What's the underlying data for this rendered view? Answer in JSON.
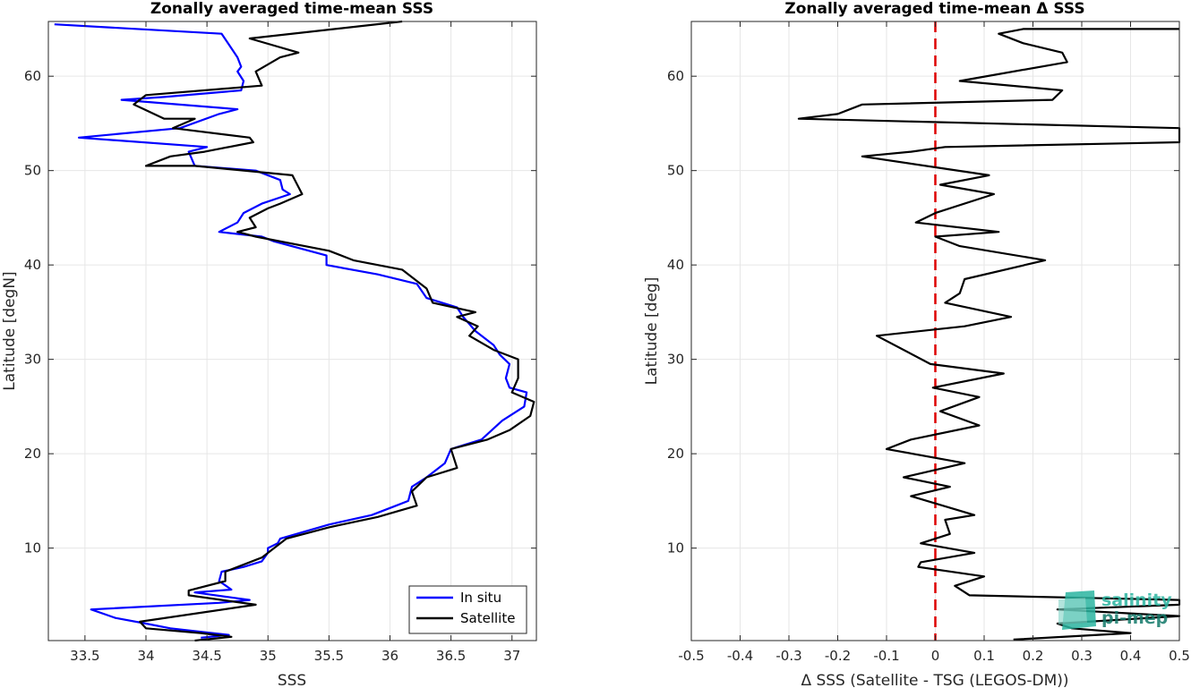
{
  "chart_data": [
    {
      "type": "line",
      "title": "Zonally averaged time-mean SSS",
      "xlabel": "SSS",
      "ylabel": "Latitude [degN]",
      "xlim": [
        33.2,
        37.2
      ],
      "ylim": [
        0.2,
        65.8
      ],
      "xticks": [
        33.5,
        34,
        34.5,
        35,
        35.5,
        36,
        36.5,
        37
      ],
      "xticklabels": [
        "33.5",
        "34",
        "34.5",
        "35",
        "35.5",
        "36",
        "36.5",
        "37"
      ],
      "yticks": [
        10,
        20,
        30,
        40,
        50,
        60
      ],
      "yticklabels": [
        "10",
        "20",
        "30",
        "40",
        "50",
        "60"
      ],
      "grid": true,
      "legend": "bottom-right",
      "series": [
        {
          "name": "In situ",
          "color": "#0000ff",
          "points": [
            [
              34.45,
              0.5
            ],
            [
              34.68,
              0.8
            ],
            [
              34.2,
              1.5
            ],
            [
              34.0,
              2.0
            ],
            [
              33.75,
              2.6
            ],
            [
              33.55,
              3.5
            ],
            [
              34.6,
              4.2
            ],
            [
              34.85,
              4.5
            ],
            [
              34.4,
              5.3
            ],
            [
              34.7,
              5.6
            ],
            [
              34.6,
              6.5
            ],
            [
              34.62,
              7.5
            ],
            [
              34.8,
              8.0
            ],
            [
              34.95,
              8.6
            ],
            [
              35.0,
              9.5
            ],
            [
              35.0,
              10.0
            ],
            [
              35.08,
              10.5
            ],
            [
              35.1,
              11.0
            ],
            [
              35.5,
              12.5
            ],
            [
              35.85,
              13.5
            ],
            [
              36.05,
              14.5
            ],
            [
              36.15,
              15.0
            ],
            [
              36.18,
              16.5
            ],
            [
              36.3,
              17.5
            ],
            [
              36.45,
              19.0
            ],
            [
              36.5,
              20.5
            ],
            [
              36.75,
              21.5
            ],
            [
              36.92,
              23.5
            ],
            [
              37.1,
              25.0
            ],
            [
              37.12,
              26.5
            ],
            [
              36.98,
              27.0
            ],
            [
              36.95,
              28.0
            ],
            [
              36.98,
              29.5
            ],
            [
              36.9,
              30.5
            ],
            [
              36.85,
              31.5
            ],
            [
              36.7,
              33.0
            ],
            [
              36.6,
              34.5
            ],
            [
              36.55,
              35.5
            ],
            [
              36.3,
              36.5
            ],
            [
              36.22,
              38.0
            ],
            [
              35.9,
              39.0
            ],
            [
              35.48,
              40.0
            ],
            [
              35.48,
              41.0
            ],
            [
              35.05,
              42.5
            ],
            [
              34.95,
              43.0
            ],
            [
              34.6,
              43.5
            ],
            [
              34.75,
              44.5
            ],
            [
              34.8,
              45.5
            ],
            [
              34.95,
              46.5
            ],
            [
              35.18,
              47.5
            ],
            [
              35.12,
              48.0
            ],
            [
              35.1,
              49.0
            ],
            [
              34.9,
              50.0
            ],
            [
              34.4,
              50.5
            ],
            [
              34.35,
              52.0
            ],
            [
              34.5,
              52.5
            ],
            [
              33.45,
              53.5
            ],
            [
              34.28,
              54.5
            ],
            [
              34.6,
              56.0
            ],
            [
              34.75,
              56.5
            ],
            [
              33.8,
              57.5
            ],
            [
              34.15,
              57.8
            ],
            [
              34.78,
              58.5
            ],
            [
              34.8,
              59.5
            ],
            [
              34.75,
              60.5
            ],
            [
              34.78,
              61.0
            ],
            [
              34.75,
              62.0
            ],
            [
              34.62,
              64.5
            ],
            [
              33.25,
              65.5
            ]
          ]
        },
        {
          "name": "Satellite",
          "color": "#000000",
          "points": [
            [
              34.4,
              0.0
            ],
            [
              34.7,
              0.6
            ],
            [
              34.45,
              1.0
            ],
            [
              34.0,
              1.5
            ],
            [
              33.95,
              2.2
            ],
            [
              34.9,
              4.0
            ],
            [
              34.35,
              5.0
            ],
            [
              34.35,
              5.5
            ],
            [
              34.65,
              6.5
            ],
            [
              34.65,
              7.5
            ],
            [
              34.95,
              9.0
            ],
            [
              35.05,
              10.0
            ],
            [
              35.15,
              11.0
            ],
            [
              35.5,
              12.2
            ],
            [
              35.9,
              13.3
            ],
            [
              36.22,
              14.5
            ],
            [
              36.18,
              16.0
            ],
            [
              36.3,
              17.5
            ],
            [
              36.55,
              18.5
            ],
            [
              36.5,
              20.5
            ],
            [
              36.8,
              21.5
            ],
            [
              36.98,
              22.5
            ],
            [
              37.15,
              24.0
            ],
            [
              37.18,
              25.5
            ],
            [
              37.0,
              26.5
            ],
            [
              37.05,
              28.0
            ],
            [
              37.05,
              30.0
            ],
            [
              36.85,
              31.0
            ],
            [
              36.65,
              32.5
            ],
            [
              36.72,
              33.5
            ],
            [
              36.55,
              34.5
            ],
            [
              36.7,
              35.0
            ],
            [
              36.35,
              36.0
            ],
            [
              36.3,
              37.5
            ],
            [
              36.25,
              38.0
            ],
            [
              36.1,
              39.5
            ],
            [
              35.7,
              40.5
            ],
            [
              35.5,
              41.5
            ],
            [
              34.9,
              43.0
            ],
            [
              34.75,
              43.5
            ],
            [
              34.9,
              44.0
            ],
            [
              34.85,
              45.0
            ],
            [
              35.0,
              46.0
            ],
            [
              35.1,
              46.5
            ],
            [
              35.28,
              47.5
            ],
            [
              35.2,
              49.5
            ],
            [
              34.4,
              50.5
            ],
            [
              34.0,
              50.5
            ],
            [
              34.2,
              51.5
            ],
            [
              34.48,
              52.0
            ],
            [
              34.88,
              53.0
            ],
            [
              34.85,
              53.5
            ],
            [
              34.22,
              54.5
            ],
            [
              34.4,
              55.5
            ],
            [
              34.15,
              55.5
            ],
            [
              33.9,
              57.0
            ],
            [
              34.0,
              58.0
            ],
            [
              34.95,
              59.0
            ],
            [
              34.9,
              60.5
            ],
            [
              35.1,
              62.0
            ],
            [
              35.25,
              62.5
            ],
            [
              34.85,
              64.0
            ],
            [
              36.1,
              65.8
            ]
          ]
        }
      ]
    },
    {
      "type": "line",
      "title": "Zonally averaged time-mean Δ SSS",
      "xlabel": "Δ SSS (Satellite - TSG (LEGOS-DM))",
      "ylabel": "Latitude [deg]",
      "xlim": [
        -0.5,
        0.5
      ],
      "ylim": [
        0.2,
        65.8
      ],
      "xticks": [
        -0.5,
        -0.4,
        -0.3,
        -0.2,
        -0.1,
        0,
        0.1,
        0.2,
        0.3,
        0.4,
        0.5
      ],
      "xticklabels": [
        "-0.5",
        "-0.4",
        "-0.3",
        "-0.2",
        "-0.1",
        "0",
        "0.1",
        "0.2",
        "0.3",
        "0.4",
        "0.5"
      ],
      "yticks": [
        10,
        20,
        30,
        40,
        50,
        60
      ],
      "yticklabels": [
        "10",
        "20",
        "30",
        "40",
        "50",
        "60"
      ],
      "grid": true,
      "reference_line": {
        "x": 0,
        "color": "#dd0000",
        "style": "dashed"
      },
      "series": [
        {
          "color": "#000000",
          "points": [
            [
              0.16,
              0.3
            ],
            [
              0.4,
              1.0
            ],
            [
              0.28,
              1.5
            ],
            [
              0.25,
              2.0
            ],
            [
              0.5,
              2.8
            ],
            [
              0.25,
              3.5
            ],
            [
              0.5,
              4.0
            ],
            [
              0.5,
              4.5
            ],
            [
              0.07,
              5.0
            ],
            [
              0.04,
              6.0
            ],
            [
              0.1,
              7.0
            ],
            [
              -0.035,
              8.0
            ],
            [
              -0.03,
              8.5
            ],
            [
              0.08,
              9.5
            ],
            [
              -0.03,
              10.5
            ],
            [
              0.03,
              11.5
            ],
            [
              0.02,
              13.0
            ],
            [
              0.08,
              13.5
            ],
            [
              -0.05,
              15.5
            ],
            [
              0.03,
              16.5
            ],
            [
              -0.065,
              17.5
            ],
            [
              0.06,
              19.0
            ],
            [
              -0.1,
              20.5
            ],
            [
              -0.05,
              21.5
            ],
            [
              0.09,
              23.0
            ],
            [
              0.01,
              24.5
            ],
            [
              0.09,
              26.0
            ],
            [
              -0.005,
              27.0
            ],
            [
              0.14,
              28.5
            ],
            [
              -0.01,
              29.5
            ],
            [
              -0.12,
              32.5
            ],
            [
              0.06,
              33.5
            ],
            [
              0.155,
              34.5
            ],
            [
              0.02,
              36.0
            ],
            [
              0.05,
              37.0
            ],
            [
              0.06,
              38.5
            ],
            [
              0.225,
              40.5
            ],
            [
              0.05,
              42.0
            ],
            [
              0.0,
              43.0
            ],
            [
              0.13,
              43.5
            ],
            [
              -0.04,
              44.5
            ],
            [
              0.0,
              45.5
            ],
            [
              0.12,
              47.5
            ],
            [
              0.01,
              48.5
            ],
            [
              0.11,
              49.5
            ],
            [
              -0.15,
              51.5
            ],
            [
              -0.05,
              52.0
            ],
            [
              0.02,
              52.5
            ],
            [
              0.5,
              53.0
            ],
            [
              0.5,
              54.5
            ],
            [
              -0.28,
              55.5
            ],
            [
              -0.2,
              56.0
            ],
            [
              -0.15,
              57.0
            ],
            [
              0.24,
              57.5
            ],
            [
              0.26,
              58.5
            ],
            [
              0.05,
              59.5
            ],
            [
              0.27,
              61.5
            ],
            [
              0.26,
              62.5
            ],
            [
              0.18,
              63.5
            ],
            [
              0.13,
              64.5
            ],
            [
              0.18,
              65.0
            ],
            [
              0.5,
              65.0
            ]
          ]
        }
      ]
    }
  ],
  "legend": {
    "in_situ_label": "In situ",
    "satellite_label": "Satellite"
  },
  "logo": {
    "line1": "salinity",
    "line2": "pi-mep"
  },
  "colors": {
    "in_situ": "#0000ff",
    "satellite": "#000000",
    "reference": "#dd0000",
    "logo": "#2bb5a0"
  }
}
